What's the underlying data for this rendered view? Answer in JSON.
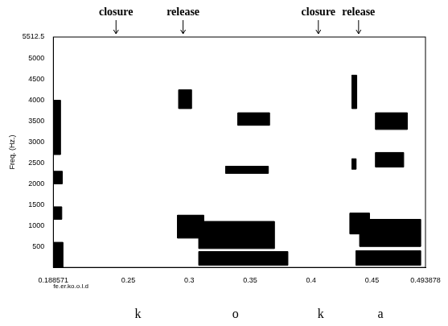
{
  "chart_data": {
    "type": "spectrogram",
    "y_label": "Freq. (Hz.)",
    "file_label": "fe.er.ko.o.l.d",
    "xlim": [
      0.188571,
      0.493878
    ],
    "xticks": [
      0.188571,
      0.25,
      0.3,
      0.35,
      0.4,
      0.45,
      0.493878
    ],
    "ylim": [
      0,
      5512.5
    ],
    "yticks": [
      500,
      1000,
      1500,
      2000,
      2500,
      3000,
      3500,
      4000,
      4500,
      5000,
      5512.5
    ],
    "grid": false,
    "color": "#000000",
    "annotations": [
      {
        "text": "closure",
        "x": 0.24
      },
      {
        "text": "release",
        "x": 0.295
      },
      {
        "text": "closure",
        "x": 0.406
      },
      {
        "text": "release",
        "x": 0.439
      }
    ],
    "segments": [
      {
        "text": "k",
        "x": 0.258
      },
      {
        "text": "o",
        "x": 0.338
      },
      {
        "text": "k",
        "x": 0.408
      },
      {
        "text": "a",
        "x": 0.457
      }
    ],
    "bands": [
      {
        "x": [
          0.1886,
          0.1965
        ],
        "y": [
          0,
          600
        ]
      },
      {
        "x": [
          0.1886,
          0.1955
        ],
        "y": [
          1150,
          1450
        ]
      },
      {
        "x": [
          0.1886,
          0.196
        ],
        "y": [
          2000,
          2300
        ]
      },
      {
        "x": [
          0.1886,
          0.1945
        ],
        "y": [
          2700,
          4000
        ]
      },
      {
        "x": [
          0.2915,
          0.302
        ],
        "y": [
          3800,
          4250
        ]
      },
      {
        "x": [
          0.2905,
          0.312
        ],
        "y": [
          700,
          1250
        ]
      },
      {
        "x": [
          0.308,
          0.37
        ],
        "y": [
          450,
          1100
        ]
      },
      {
        "x": [
          0.308,
          0.381
        ],
        "y": [
          50,
          380
        ]
      },
      {
        "x": [
          0.33,
          0.365
        ],
        "y": [
          2250,
          2420
        ]
      },
      {
        "x": [
          0.34,
          0.366
        ],
        "y": [
          3400,
          3700
        ]
      },
      {
        "x": [
          0.4335,
          0.4375
        ],
        "y": [
          3800,
          4600
        ]
      },
      {
        "x": [
          0.4335,
          0.437
        ],
        "y": [
          2350,
          2600
        ]
      },
      {
        "x": [
          0.432,
          0.448
        ],
        "y": [
          800,
          1300
        ]
      },
      {
        "x": [
          0.44,
          0.49
        ],
        "y": [
          500,
          1150
        ]
      },
      {
        "x": [
          0.437,
          0.49
        ],
        "y": [
          50,
          400
        ]
      },
      {
        "x": [
          0.453,
          0.476
        ],
        "y": [
          2400,
          2750
        ]
      },
      {
        "x": [
          0.453,
          0.479
        ],
        "y": [
          3300,
          3700
        ]
      }
    ]
  }
}
